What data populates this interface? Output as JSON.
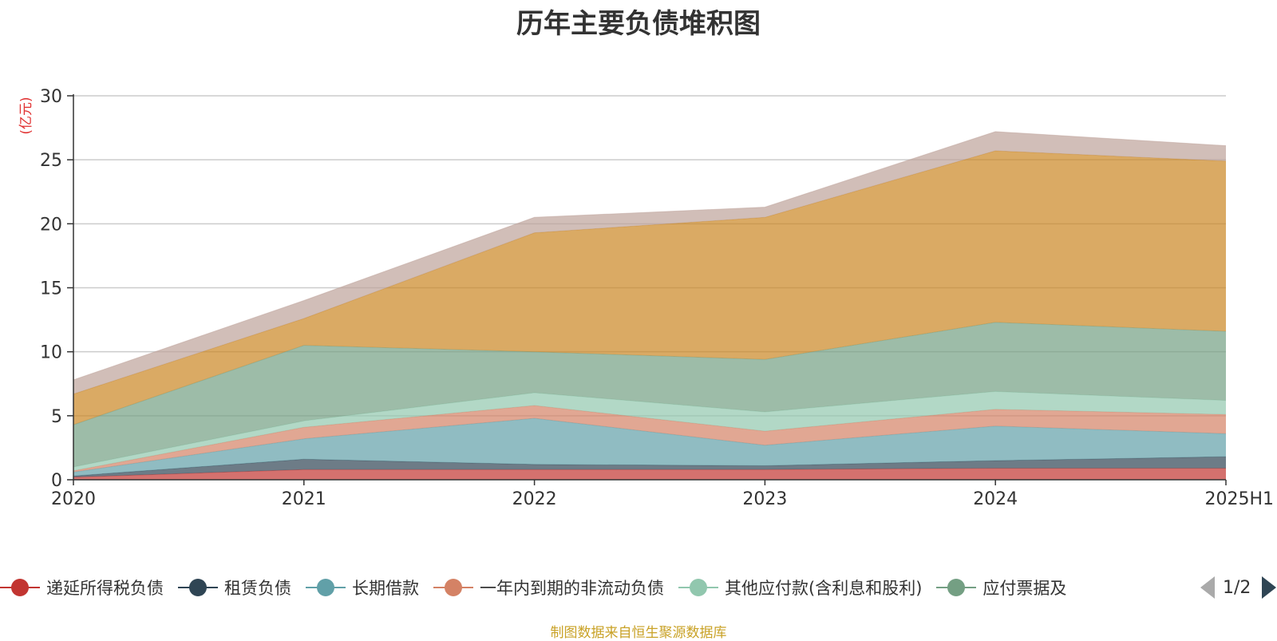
{
  "chart_data": {
    "type": "area",
    "title": "历年主要负债堆积图",
    "ylabel": "(亿元)",
    "xlabel": "",
    "ylim": [
      0,
      30
    ],
    "yticks": [
      0,
      5,
      10,
      15,
      20,
      25,
      30
    ],
    "grid": true,
    "stacked": true,
    "categories": [
      "2020",
      "2021",
      "2022",
      "2023",
      "2024",
      "2025H1"
    ],
    "series": [
      {
        "name": "递延所得税负债",
        "color": "#c23531",
        "values": [
          0.2,
          0.8,
          0.8,
          0.8,
          0.9,
          0.9
        ]
      },
      {
        "name": "租赁负债",
        "color": "#2f4554",
        "values": [
          0.1,
          0.8,
          0.4,
          0.3,
          0.6,
          0.9
        ]
      },
      {
        "name": "长期借款",
        "color": "#61a0a8",
        "values": [
          0.3,
          1.6,
          3.6,
          1.6,
          2.7,
          1.8
        ]
      },
      {
        "name": "一年内到期的非流动负债",
        "color": "#d48265",
        "values": [
          0.1,
          0.9,
          1.0,
          1.1,
          1.3,
          1.5
        ]
      },
      {
        "name": "其他应付款(含利息和股利)",
        "color": "#91c7ae",
        "values": [
          0.3,
          0.5,
          1.0,
          1.5,
          1.4,
          1.1
        ]
      },
      {
        "name": "应付票据及应付账款",
        "color": "#749f83",
        "values": [
          3.3,
          5.9,
          3.2,
          4.1,
          5.4,
          5.4
        ]
      },
      {
        "name": "",
        "color": "#ca8622",
        "values": [
          2.4,
          2.1,
          9.3,
          11.1,
          13.4,
          13.3
        ]
      },
      {
        "name": "",
        "color": "#bda29a",
        "values": [
          1.1,
          1.4,
          1.2,
          0.8,
          1.5,
          1.2
        ]
      }
    ]
  },
  "legend": {
    "items": [
      {
        "label": "递延所得税负债",
        "color": "#c23531"
      },
      {
        "label": "租赁负债",
        "color": "#2f4554"
      },
      {
        "label": "长期借款",
        "color": "#61a0a8"
      },
      {
        "label": "一年内到期的非流动负债",
        "color": "#d48265"
      },
      {
        "label": "其他应付款(含利息和股利)",
        "color": "#91c7ae"
      },
      {
        "label": "应付票据及",
        "color": "#749f83"
      }
    ],
    "page": "1/2"
  },
  "source": "制图数据来自恒生聚源数据库"
}
